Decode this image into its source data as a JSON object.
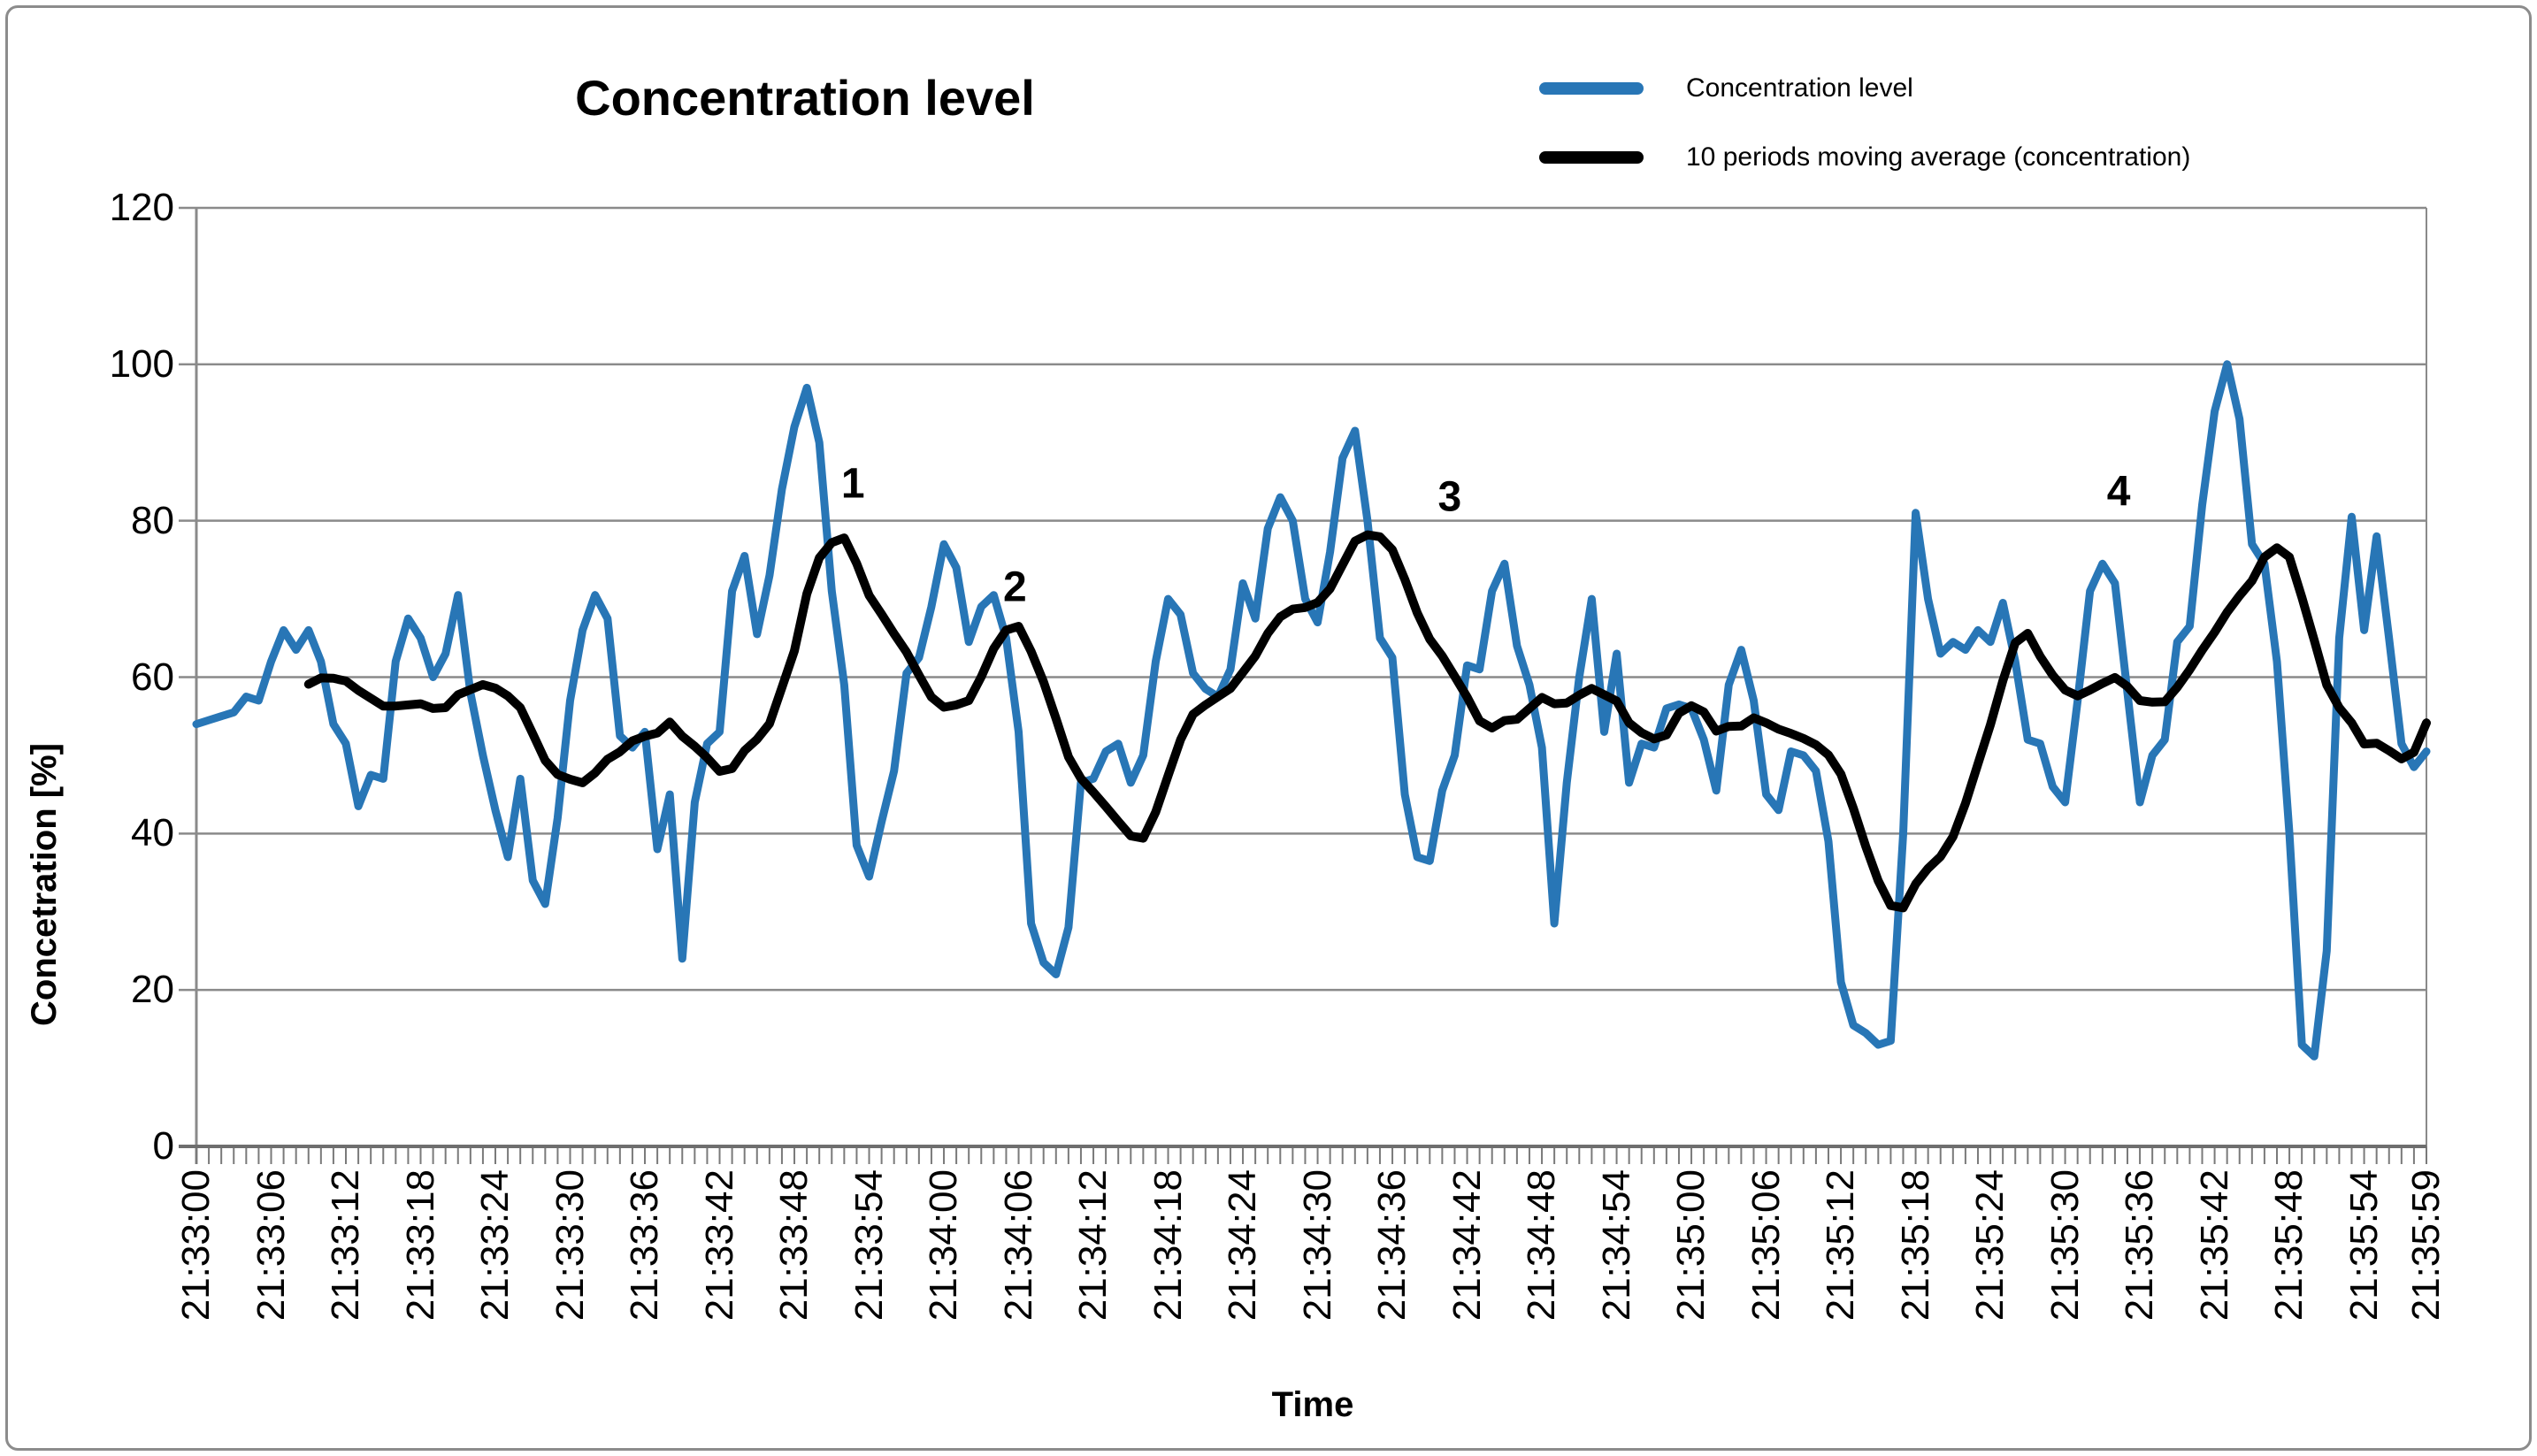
{
  "title": "Concentration level",
  "legend": {
    "items": [
      {
        "label": "Concentration level",
        "color": "#2876B6"
      },
      {
        "label": "10 periods moving average (concentration)",
        "color": "#000000"
      }
    ]
  },
  "y_axis": {
    "title": "Concetration [%]",
    "ticks": [
      0,
      20,
      40,
      60,
      80,
      100,
      120
    ],
    "min": 0,
    "max": 120
  },
  "x_axis": {
    "title": "Time",
    "tick_labels": [
      {
        "i": 0,
        "text": "21:33:00"
      },
      {
        "i": 6,
        "text": "21:33:06"
      },
      {
        "i": 12,
        "text": "21:33:12"
      },
      {
        "i": 18,
        "text": "21:33:18"
      },
      {
        "i": 24,
        "text": "21:33:24"
      },
      {
        "i": 30,
        "text": "21:33:30"
      },
      {
        "i": 36,
        "text": "21:33:36"
      },
      {
        "i": 42,
        "text": "21:33:42"
      },
      {
        "i": 48,
        "text": "21:33:48"
      },
      {
        "i": 54,
        "text": "21:33:54"
      },
      {
        "i": 60,
        "text": "21:34:00"
      },
      {
        "i": 66,
        "text": "21:34:06"
      },
      {
        "i": 72,
        "text": "21:34:12"
      },
      {
        "i": 78,
        "text": "21:34:18"
      },
      {
        "i": 84,
        "text": "21:34:24"
      },
      {
        "i": 90,
        "text": "21:34:30"
      },
      {
        "i": 96,
        "text": "21:34:36"
      },
      {
        "i": 102,
        "text": "21:34:42"
      },
      {
        "i": 108,
        "text": "21:34:48"
      },
      {
        "i": 114,
        "text": "21:34:54"
      },
      {
        "i": 120,
        "text": "21:35:00"
      },
      {
        "i": 126,
        "text": "21:35:06"
      },
      {
        "i": 132,
        "text": "21:35:12"
      },
      {
        "i": 138,
        "text": "21:35:18"
      },
      {
        "i": 144,
        "text": "21:35:24"
      },
      {
        "i": 150,
        "text": "21:35:30"
      },
      {
        "i": 156,
        "text": "21:35:36"
      },
      {
        "i": 162,
        "text": "21:35:42"
      },
      {
        "i": 168,
        "text": "21:35:48"
      },
      {
        "i": 174,
        "text": "21:35:54"
      },
      {
        "i": 179,
        "text": "21:35:59"
      }
    ]
  },
  "annotations": [
    {
      "text": "1",
      "t": 52.7,
      "v": 84.7
    },
    {
      "text": "2",
      "t": 65.7,
      "v": 71.5
    },
    {
      "text": "3",
      "t": 100.6,
      "v": 83.0
    },
    {
      "text": "4",
      "t": 154.3,
      "v": 83.7
    }
  ],
  "colors": {
    "grid": "#8a8a8a",
    "axis": "#6e6e6e",
    "tick": "#7a7a7a",
    "blue_line": "#2876B6",
    "black_line": "#000000"
  },
  "chart_data": {
    "type": "line",
    "title": "Concentration level",
    "xlabel": "Time",
    "ylabel": "Concetration [%]",
    "ylim": [
      0,
      120
    ],
    "grid": true,
    "legend_position": "top-right",
    "x_start": "21:33:00",
    "x_end": "21:35:59",
    "x_interval_seconds": 1,
    "series": [
      {
        "name": "Concentration level",
        "color": "#2876B6",
        "values": [
          54,
          54.5,
          55,
          55.5,
          57.5,
          57,
          62,
          66,
          63.5,
          66,
          62,
          54,
          51.5,
          43.5,
          47.5,
          47,
          62,
          67.5,
          65,
          60,
          63,
          70.5,
          58,
          50,
          43,
          37,
          47,
          34,
          31,
          42,
          57,
          66,
          70.5,
          67.5,
          52.5,
          51,
          53,
          38,
          45,
          24,
          44,
          51.5,
          53,
          71,
          75.5,
          65.5,
          73,
          84,
          92,
          97,
          90,
          71,
          59,
          38.5,
          34.5,
          41.5,
          48,
          60.5,
          62.5,
          69,
          77,
          74,
          64.5,
          69,
          70.5,
          65,
          53,
          28.5,
          23.5,
          22,
          28,
          46.5,
          47,
          50.5,
          51.5,
          46.5,
          50,
          62,
          70,
          68,
          60.5,
          58.5,
          57.5,
          61,
          72,
          67.5,
          79,
          83,
          80,
          70,
          67,
          76,
          88,
          91.5,
          80,
          65,
          62.5,
          45,
          37,
          36.5,
          45.5,
          50,
          61.5,
          61,
          71,
          74.5,
          64,
          59,
          51,
          28.5,
          46.5,
          60,
          70,
          53,
          63,
          46.5,
          51.5,
          51,
          56,
          56.5,
          56,
          52,
          45.5,
          59,
          63.5,
          57,
          45,
          43,
          50.5,
          50,
          48,
          39,
          21,
          15.5,
          14.5,
          13,
          13.5,
          40,
          81,
          70,
          63,
          64.5,
          63.5,
          66,
          64.5,
          69.5,
          62,
          52,
          51.5,
          46,
          44,
          57,
          71,
          74.5,
          72,
          58,
          44,
          50,
          52,
          64.5,
          66.5,
          82,
          94,
          100,
          93,
          77,
          74.5,
          62,
          40,
          13,
          11.5,
          25,
          65,
          80.5,
          66,
          78,
          65,
          51.5,
          48.5,
          50.5
        ]
      },
      {
        "name": "10 periods moving average (concentration)",
        "color": "#000000",
        "derived": "trailing moving average of 'Concentration level', window 10, plotted from index 9"
      }
    ]
  }
}
